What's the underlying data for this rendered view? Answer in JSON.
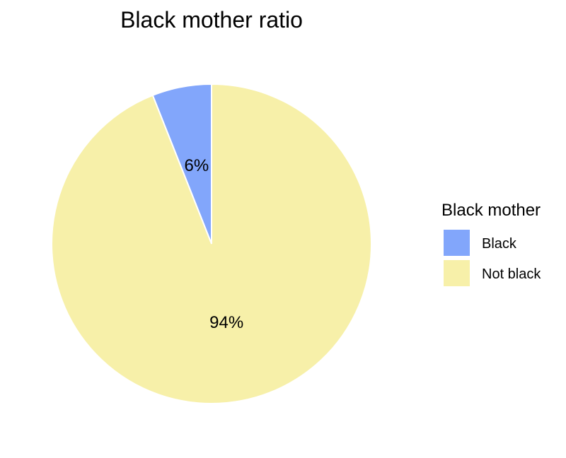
{
  "chart_data": {
    "type": "pie",
    "title": "Black mother ratio",
    "legend_title": "Black mother",
    "legend_position": "right",
    "categories": [
      "Black",
      "Not black"
    ],
    "values": [
      6,
      94
    ],
    "labels": [
      "6%",
      "94%"
    ],
    "colors": [
      "#82a6fb",
      "#f7f0a9"
    ]
  }
}
